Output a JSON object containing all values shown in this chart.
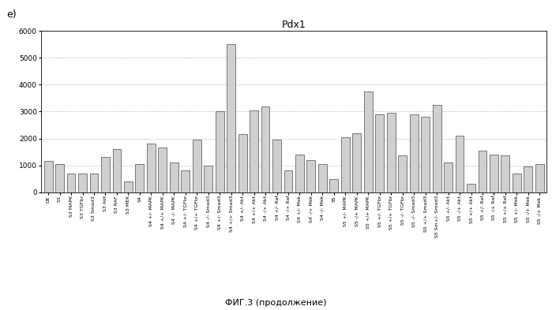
{
  "title": "Pdx1",
  "xlabel": "ФИГ.3 (продолжение)",
  "ylim": [
    0,
    6000
  ],
  "yticks": [
    0,
    1000,
    2000,
    3000,
    4000,
    5000,
    6000
  ],
  "fig_label": "e)",
  "categories": [
    "DE",
    "S3",
    "S3 MAPK",
    "S3 TGFbr",
    "S3 Smad3",
    "S3 Akt",
    "S3 RAF",
    "S3 MEK",
    "S4",
    "S4 +/- MAPK",
    "S4 +/+ MAPK",
    "S4 -/- MAPK",
    "S4 +/- TGFbr",
    "S4 +/+ TGFbr",
    "S4 -/- Smad3",
    "S4 +/- Smad3",
    "S4 +/+ Smad3",
    "S4 +/- Akt",
    "S4 +/+ Akt",
    "S4 -/+ Akt",
    "S4 +/- Raf",
    "S4 -/+ Raf",
    "S4 +/- Mek",
    "S4 -/+ Mek",
    "S4 -/- Mek",
    "S5",
    "S5 +/- MAPK",
    "S5 -/+ MAPK",
    "S5 +/+ MAPK",
    "S5 +/- TGFbr",
    "S5 +/+ TGFbr",
    "S5 -/- TGFbr",
    "S5 -/- Smad3",
    "S5 +/+ Smad3",
    "S5 Sm+/- Smad3",
    "S5 +/- Akt",
    "S5 -/+ Akt",
    "S5 +/+ Akt",
    "S5 +/- Raf",
    "S5 -/+ Raf",
    "S5 +/+ Raf",
    "S5 +/- Mek",
    "S5 -/+ Mek",
    "S5 -/+ Mek "
  ],
  "values": [
    1150,
    1050,
    700,
    700,
    700,
    1300,
    1600,
    400,
    1050,
    1800,
    1650,
    1100,
    800,
    1950,
    1000,
    3000,
    5500,
    2150,
    3050,
    3200,
    1950,
    800,
    1400,
    1200,
    1050,
    500,
    2050,
    2200,
    3750,
    2900,
    2950,
    1380,
    2900,
    2800,
    3250,
    1100,
    2100,
    320,
    1550,
    1400,
    1380,
    700,
    950,
    1050
  ],
  "bar_color": "#d0d0d0",
  "bar_edge_color": "#222222",
  "background_color": "#ffffff",
  "grid_color": "#888888",
  "title_fontsize": 9,
  "tick_label_fontsize": 4.5,
  "ytick_fontsize": 6.5,
  "caption_fontsize": 8,
  "fig_label_fontsize": 9
}
